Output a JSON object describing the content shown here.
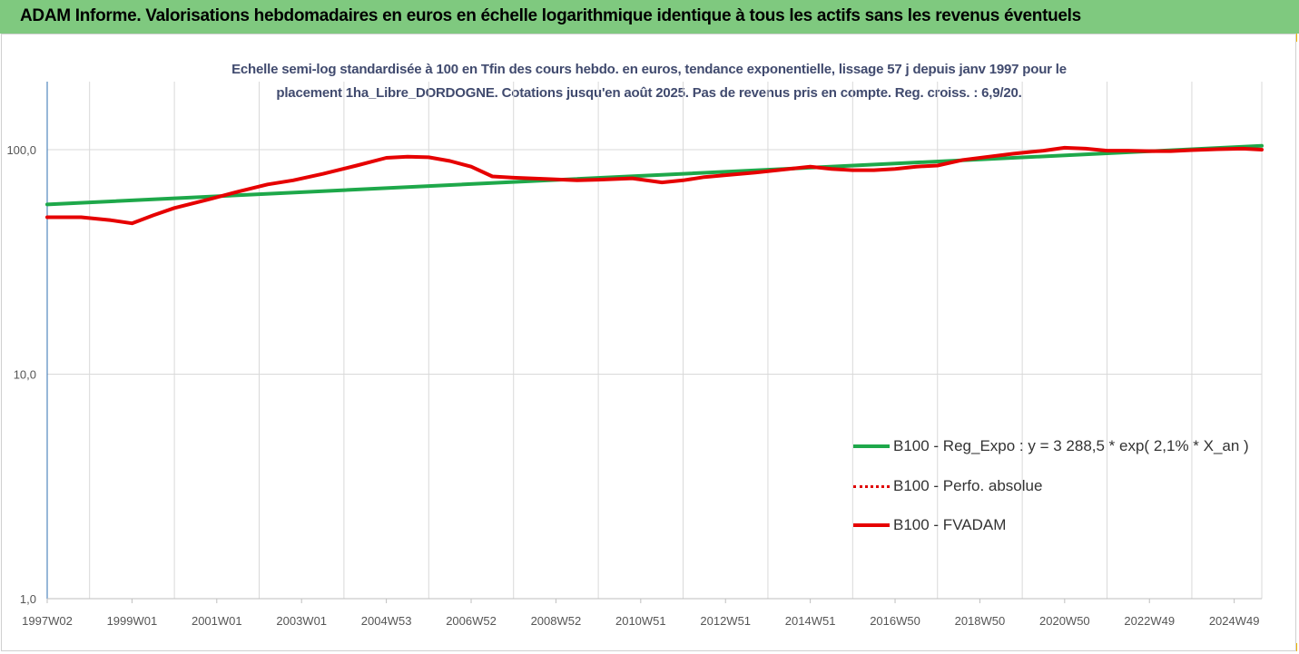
{
  "header": {
    "title": "ADAM Informe. Valorisations hebdomadaires en euros en échelle logarithmique identique à tous les actifs sans les revenus éventuels"
  },
  "chart_data": {
    "type": "line",
    "subtitle_line1": "Echelle semi-log standardisée à 100 en Tfin des cours hebdo. en euros, tendance exponentielle, lissage 57 j depuis janv 1997 pour le",
    "subtitle_line2": "placement 1ha_Libre_DORDOGNE. Cotations jusqu'en août 2025. Pas de revenus pris en compte. Reg.  croiss. : 6,9/20.",
    "y_scale": "log",
    "ylim": [
      1,
      200
    ],
    "y_ticks": [
      {
        "value": 1,
        "label": "1,0"
      },
      {
        "value": 10,
        "label": "10,0"
      },
      {
        "value": 100,
        "label": "100,0"
      }
    ],
    "xlim": [
      1997.0,
      2025.65
    ],
    "x_ticks": [
      {
        "value": 1997.0,
        "label": "1997W02"
      },
      {
        "value": 1999.0,
        "label": "1999W01"
      },
      {
        "value": 2001.0,
        "label": "2001W01"
      },
      {
        "value": 2003.0,
        "label": "2003W01"
      },
      {
        "value": 2005.0,
        "label": "2004W53"
      },
      {
        "value": 2007.0,
        "label": "2006W52"
      },
      {
        "value": 2009.0,
        "label": "2008W52"
      },
      {
        "value": 2011.0,
        "label": "2010W51"
      },
      {
        "value": 2013.0,
        "label": "2012W51"
      },
      {
        "value": 2015.0,
        "label": "2014W51"
      },
      {
        "value": 2017.0,
        "label": "2016W50"
      },
      {
        "value": 2019.0,
        "label": "2018W50"
      },
      {
        "value": 2021.0,
        "label": "2020W50"
      },
      {
        "value": 2023.0,
        "label": "2022W49"
      },
      {
        "value": 2025.0,
        "label": "2024W49"
      }
    ],
    "grid": "vertical",
    "legend_position": "bottom-right",
    "series": [
      {
        "name": "B100 - Reg_Expo : y = 3 288,5 * exp( 2,1% *  X_an )",
        "color": "#1ea84a",
        "style": "solid",
        "x": [
          1997.0,
          2025.65
        ],
        "values": [
          57,
          104
        ]
      },
      {
        "name": "B100 - Perfo. absolue",
        "color": "#e00000",
        "style": "dotted",
        "x": [],
        "values": []
      },
      {
        "name": "B100 - FVADAM",
        "color": "#e60000",
        "style": "solid",
        "x": [
          1997.0,
          1997.8,
          1998.5,
          1999.0,
          1999.5,
          2000.0,
          2000.8,
          2001.5,
          2002.2,
          2002.8,
          2003.5,
          2004.3,
          2005.0,
          2005.5,
          2006.0,
          2006.5,
          2007.0,
          2007.5,
          2008.0,
          2008.8,
          2009.5,
          2010.0,
          2010.8,
          2011.5,
          2012.0,
          2012.5,
          2013.0,
          2013.7,
          2014.5,
          2015.0,
          2015.5,
          2016.0,
          2016.5,
          2017.0,
          2017.5,
          2018.0,
          2018.6,
          2019.2,
          2019.8,
          2020.5,
          2021.0,
          2021.5,
          2022.0,
          2022.5,
          2023.0,
          2023.5,
          2024.0,
          2024.6,
          2025.2,
          2025.65
        ],
        "values": [
          50,
          50,
          48.5,
          47,
          51,
          55,
          60,
          65,
          70,
          73,
          78,
          85,
          92,
          93,
          92.5,
          89,
          84,
          76,
          75,
          74,
          73,
          73.5,
          74.5,
          71.5,
          73,
          75.5,
          77,
          79,
          82,
          84,
          82,
          81,
          81,
          82,
          84,
          85,
          90,
          93,
          96,
          99,
          102,
          101,
          99,
          99,
          98.5,
          98.5,
          99.5,
          100.5,
          101,
          100
        ]
      }
    ]
  }
}
